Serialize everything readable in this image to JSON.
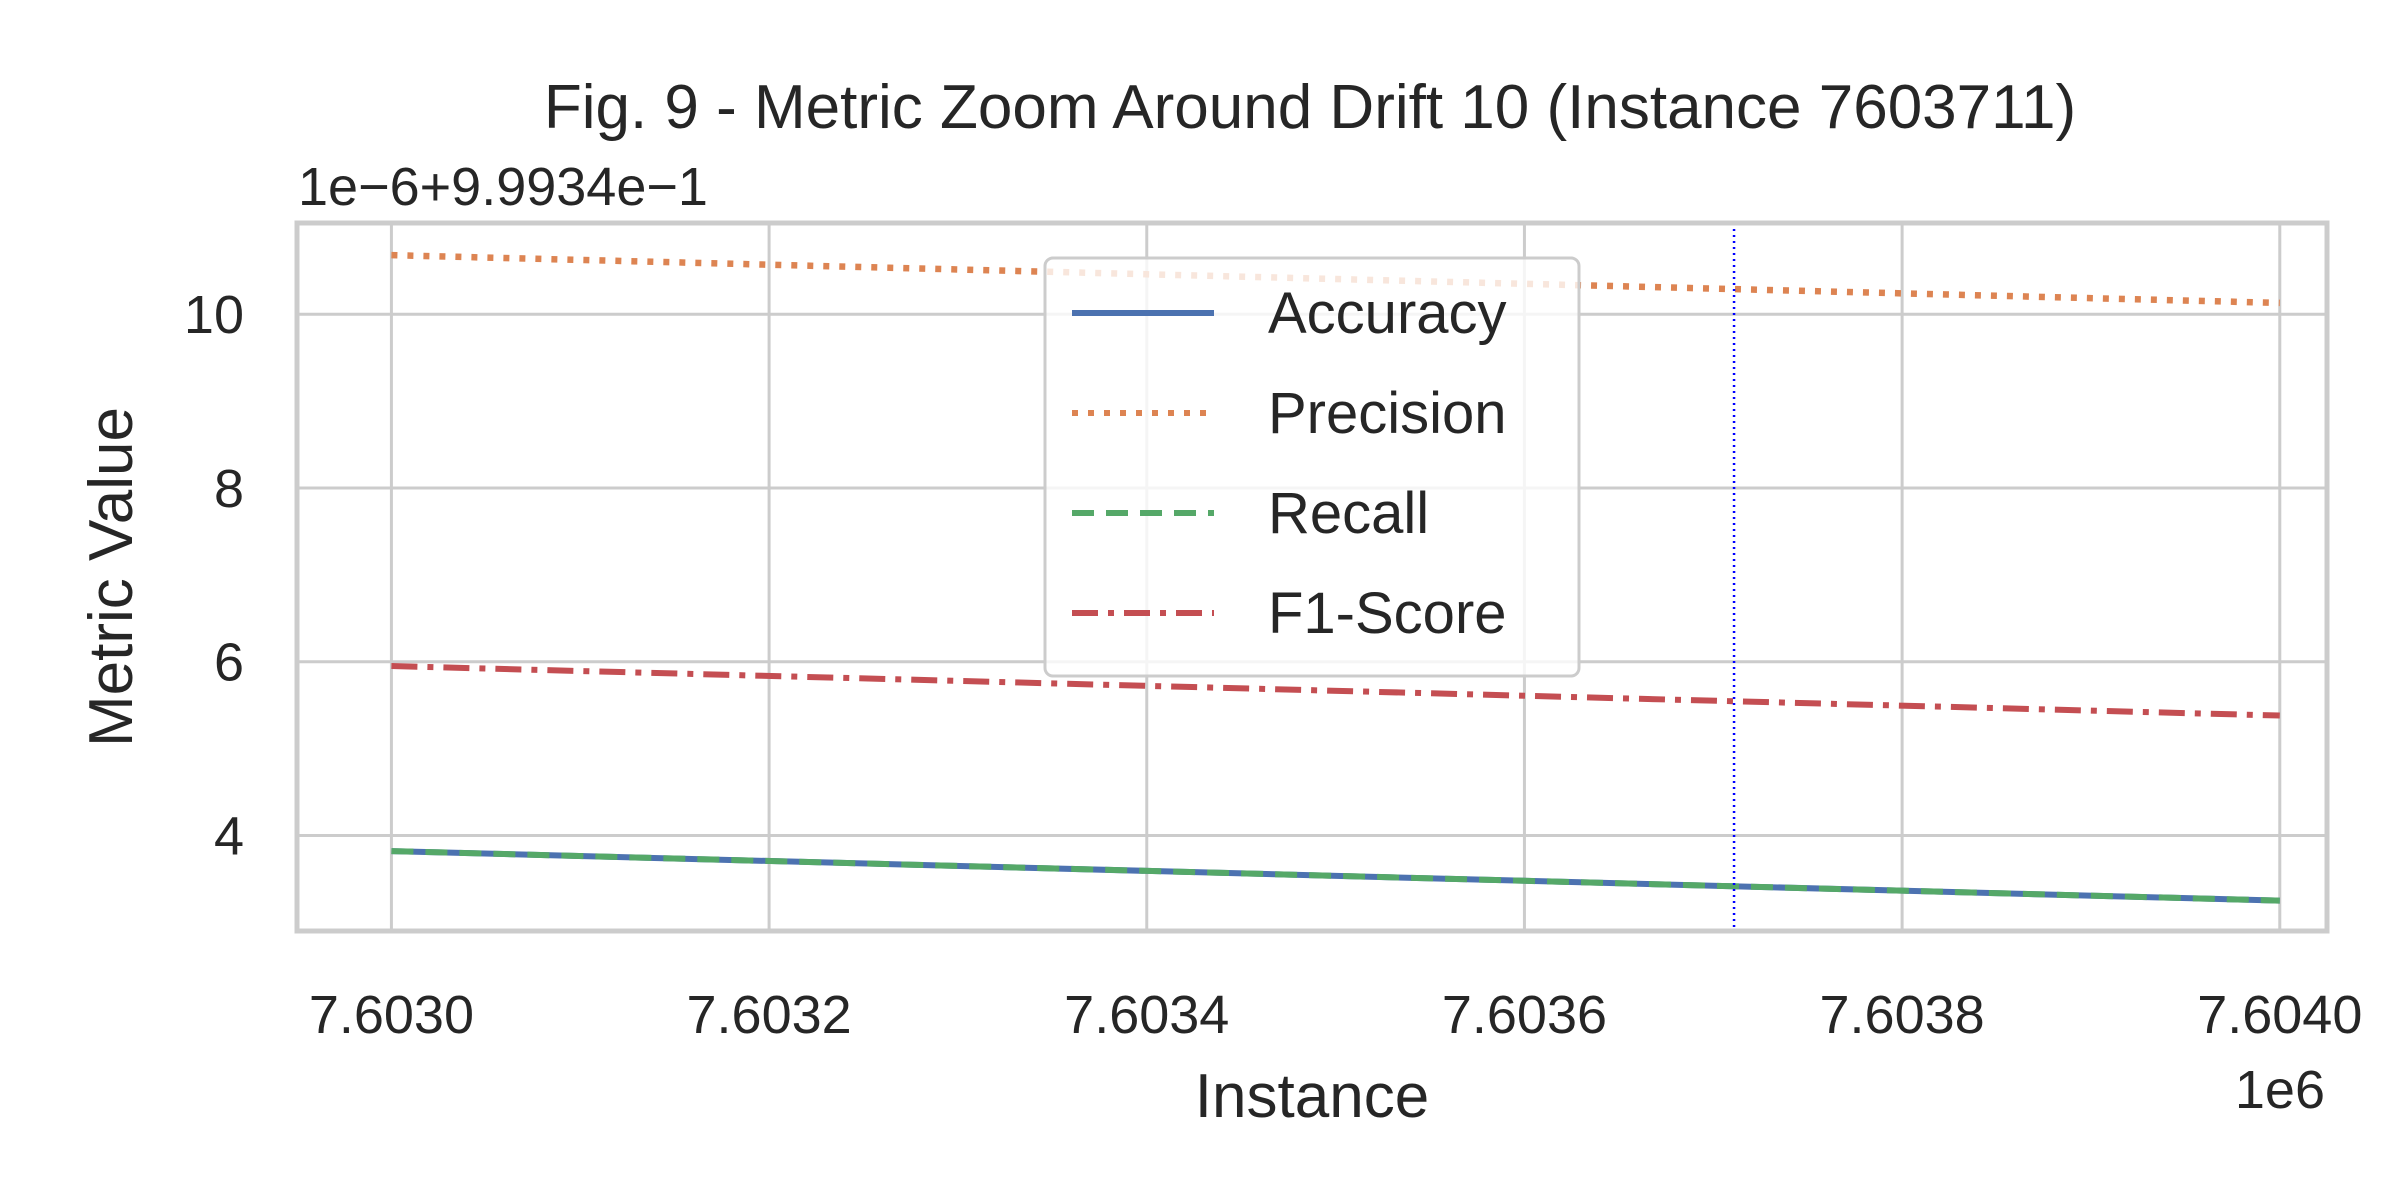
{
  "chart_data": {
    "type": "line",
    "title": "Fig. 9 - Metric Zoom Around Drift 10 (Instance 7603711)",
    "xlabel": "Instance",
    "ylabel": "Metric Value",
    "x_offset_text": "1e6",
    "y_offset_text": "1e−6+9.9934e−1",
    "xlim": [
      7602950,
      7604025
    ],
    "ylim": [
      2.9,
      11.05
    ],
    "x_ticks": [
      7603000,
      7603200,
      7603400,
      7603600,
      7603800,
      7604000
    ],
    "x_tick_labels": [
      "7.6030",
      "7.6032",
      "7.6034",
      "7.6036",
      "7.6038",
      "7.6040"
    ],
    "y_ticks": [
      4,
      6,
      8,
      10
    ],
    "y_tick_labels": [
      "4",
      "6",
      "8",
      "10"
    ],
    "grid": true,
    "legend_position": "top-center",
    "drift_marker": {
      "x": 7603711,
      "color": "#0000ff",
      "style": "dotted"
    },
    "x": [
      7603000,
      7604000
    ],
    "series": [
      {
        "name": "Accuracy",
        "values": [
          3.82,
          3.25
        ],
        "color": "#4c72b0",
        "style": "solid"
      },
      {
        "name": "Precision",
        "values": [
          10.68,
          10.13
        ],
        "color": "#dd8452",
        "style": "dotted"
      },
      {
        "name": "Recall",
        "values": [
          3.82,
          3.25
        ],
        "color": "#55a868",
        "style": "dashed"
      },
      {
        "name": "F1-Score",
        "values": [
          5.95,
          5.38
        ],
        "color": "#c44e52",
        "style": "dashdot"
      }
    ]
  }
}
